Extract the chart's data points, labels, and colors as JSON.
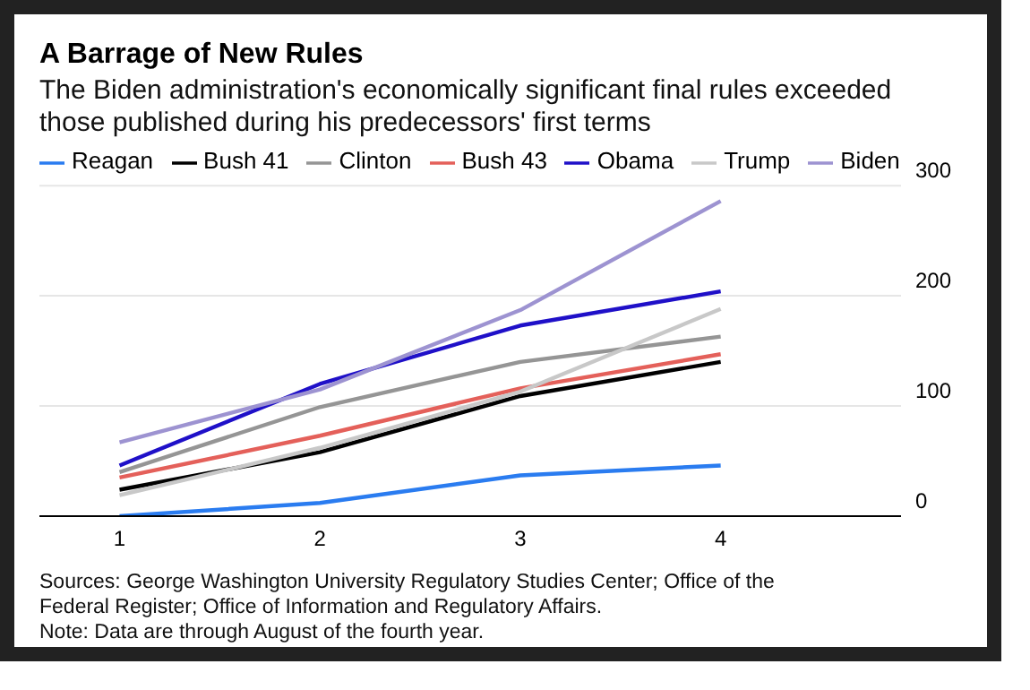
{
  "chart_data": {
    "type": "line",
    "title": "A Barrage of New Rules",
    "subtitle": "The Biden administration's economically significant final rules exceeded those published during his predecessors' first terms",
    "x": [
      1,
      2,
      3,
      4
    ],
    "xlim": [
      0.6,
      4.9
    ],
    "xticks": [
      1,
      2,
      3,
      4
    ],
    "ylim": [
      0,
      300
    ],
    "yticks": [
      0,
      100,
      200,
      300
    ],
    "grid": "y",
    "legend": "top left",
    "marker": "none",
    "line_style": "solid",
    "series": [
      {
        "name": "Reagan",
        "color": "#2a7cf0",
        "values": [
          0,
          12,
          37,
          46
        ]
      },
      {
        "name": "Bush 41",
        "color": "#000000",
        "values": [
          24,
          58,
          109,
          140
        ]
      },
      {
        "name": "Clinton",
        "color": "#959595",
        "values": [
          40,
          99,
          140,
          163
        ]
      },
      {
        "name": "Bush 43",
        "color": "#e4605a",
        "values": [
          35,
          73,
          116,
          147
        ]
      },
      {
        "name": "Obama",
        "color": "#1f10c8",
        "values": [
          46,
          120,
          173,
          204
        ]
      },
      {
        "name": "Trump",
        "color": "#c8c8c8",
        "values": [
          19,
          62,
          113,
          188
        ]
      },
      {
        "name": "Biden",
        "color": "#9d93d1",
        "values": [
          67,
          115,
          187,
          286
        ]
      }
    ],
    "annotations": [
      "Sources: George Washington University Regulatory Studies Center; Office of the Federal Register; Office of Information and Regulatory Affairs.",
      "Note: Data are through August of the fourth year."
    ]
  }
}
